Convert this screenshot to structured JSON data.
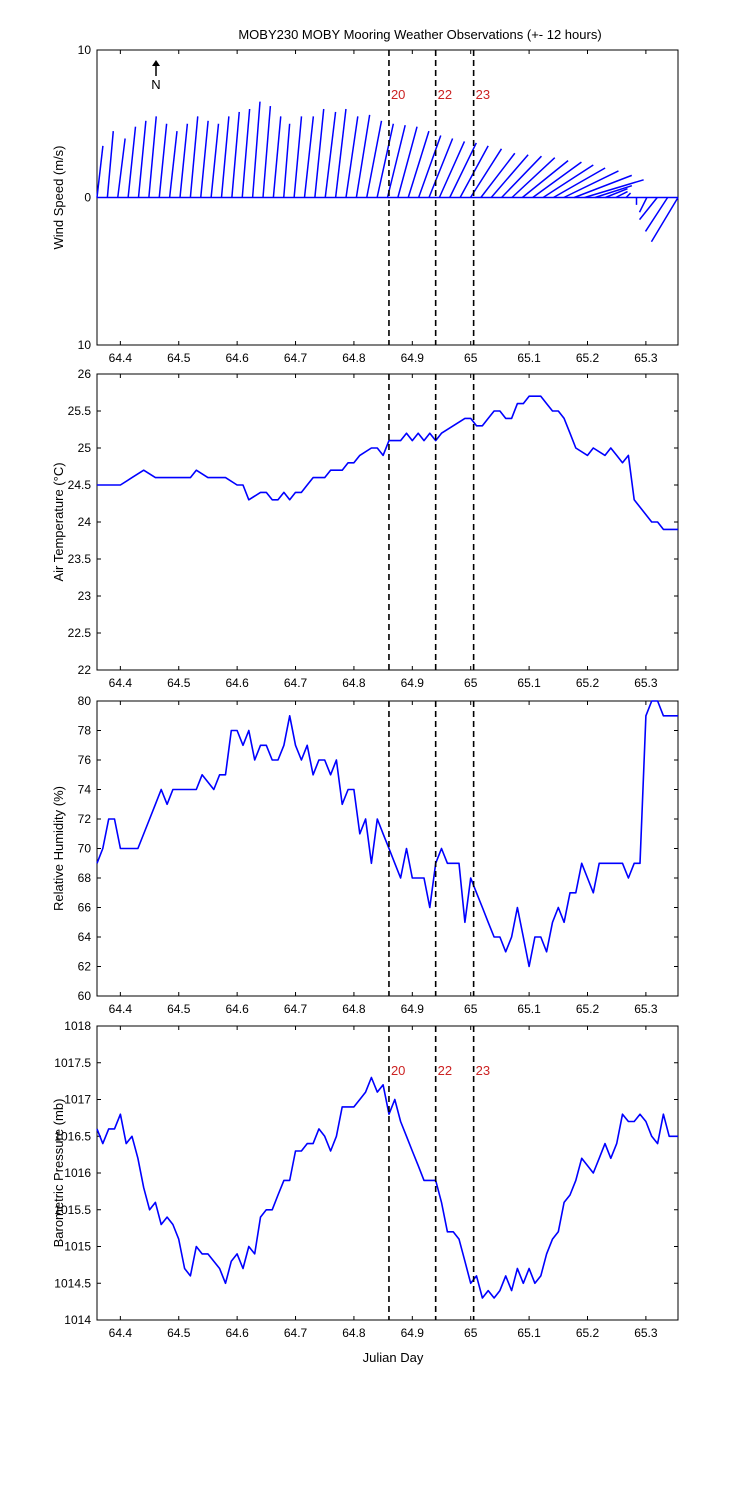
{
  "figure_title": "MOBY230 MOBY Mooring Weather Observations (+- 12 hours)",
  "colors": {
    "series": "#0000ff",
    "event_label": "#cc2222",
    "axis": "#000000"
  },
  "north_label": "N",
  "xlabel": "Julian Day",
  "x_ticks": [
    64.4,
    64.5,
    64.6,
    64.7,
    64.8,
    64.9,
    65,
    65.1,
    65.2,
    65.3
  ],
  "x_tick_labels": [
    "64.4",
    "64.5",
    "64.6",
    "64.7",
    "64.8",
    "64.9",
    "65",
    "65.1",
    "65.2",
    "65.3"
  ],
  "events": [
    {
      "x": 64.86,
      "label": "20"
    },
    {
      "x": 64.94,
      "label": "22"
    },
    {
      "x": 65.005,
      "label": "23"
    }
  ],
  "chart_data": [
    {
      "type": "line",
      "subtype": "wind-stick",
      "ylabel": "Wind Speed (m/s)",
      "xlim": [
        64.36,
        65.355
      ],
      "ylim": [
        -10,
        10
      ],
      "y_tick_labels": [
        "10",
        "0",
        "10"
      ],
      "show_events": true,
      "event_labels_shown": true,
      "series": [
        {
          "u": [
            0.4,
            0.4,
            0.5,
            0.5,
            0.5,
            0.5,
            0.5,
            0.5,
            0.5,
            0.5,
            0.5,
            0.5,
            0.5,
            0.5,
            0.5,
            0.5,
            0.5,
            0.5,
            0.4,
            0.5,
            0.6,
            0.6,
            0.7,
            0.7,
            0.8,
            0.9,
            1.0,
            1.1,
            1.2,
            1.3,
            1.4,
            1.5,
            1.6,
            1.7,
            1.8,
            1.9,
            2.1,
            2.3,
            2.5,
            2.7,
            2.9,
            3.1,
            3.3,
            3.4,
            3.5,
            3.7,
            3.9,
            4.0,
            2.5,
            1.5,
            0.8,
            0.3,
            0.0,
            -0.5,
            -1.2,
            -1.5,
            -1.8
          ],
          "v": [
            3.5,
            4.5,
            4.0,
            4.8,
            5.2,
            5.5,
            5.0,
            4.5,
            5.0,
            5.5,
            5.2,
            5.0,
            5.5,
            5.8,
            6.0,
            6.5,
            6.2,
            5.5,
            5.0,
            5.5,
            5.5,
            6.0,
            5.8,
            6.0,
            5.5,
            5.6,
            5.2,
            5.0,
            4.9,
            4.8,
            4.5,
            4.2,
            4.0,
            3.8,
            3.7,
            3.5,
            3.3,
            3.0,
            2.9,
            2.8,
            2.7,
            2.5,
            2.4,
            2.2,
            2.0,
            1.8,
            1.5,
            1.2,
            0.8,
            0.6,
            0.4,
            0.3,
            -0.5,
            -1.0,
            -1.5,
            -2.3,
            -3.0
          ]
        }
      ]
    },
    {
      "type": "line",
      "ylabel": "Air Temperature (°C)",
      "xlim": [
        64.36,
        65.355
      ],
      "ylim": [
        22,
        26
      ],
      "y_ticks": [
        22,
        22.5,
        23,
        23.5,
        24,
        24.5,
        25,
        25.5,
        26
      ],
      "y_tick_labels": [
        "22",
        "22.5",
        "23",
        "23.5",
        "24",
        "24.5",
        "25",
        "25.5",
        "26"
      ],
      "show_events": true,
      "event_labels_shown": false,
      "series": [
        {
          "x": [
            64.36,
            64.4,
            64.42,
            64.44,
            64.46,
            64.48,
            64.5,
            64.51,
            64.52,
            64.53,
            64.55,
            64.57,
            64.58,
            64.6,
            64.61,
            64.62,
            64.64,
            64.65,
            64.66,
            64.67,
            64.68,
            64.69,
            64.7,
            64.71,
            64.72,
            64.73,
            64.74,
            64.75,
            64.76,
            64.78,
            64.79,
            64.8,
            64.81,
            64.83,
            64.84,
            64.85,
            64.86,
            64.88,
            64.89,
            64.9,
            64.91,
            64.92,
            64.93,
            64.94,
            64.95,
            64.97,
            64.99,
            65.0,
            65.01,
            65.02,
            65.03,
            65.04,
            65.05,
            65.06,
            65.07,
            65.08,
            65.09,
            65.1,
            65.12,
            65.13,
            65.14,
            65.15,
            65.16,
            65.17,
            65.18,
            65.2,
            65.21,
            65.23,
            65.24,
            65.25,
            65.26,
            65.27,
            65.28,
            65.3,
            65.31,
            65.32,
            65.33,
            65.34,
            65.355
          ],
          "y": [
            24.5,
            24.5,
            24.6,
            24.7,
            24.6,
            24.6,
            24.6,
            24.6,
            24.6,
            24.7,
            24.6,
            24.6,
            24.6,
            24.5,
            24.5,
            24.3,
            24.4,
            24.4,
            24.3,
            24.3,
            24.4,
            24.3,
            24.4,
            24.4,
            24.5,
            24.6,
            24.6,
            24.6,
            24.7,
            24.7,
            24.8,
            24.8,
            24.9,
            25.0,
            25.0,
            24.9,
            25.1,
            25.1,
            25.2,
            25.1,
            25.2,
            25.1,
            25.2,
            25.1,
            25.2,
            25.3,
            25.4,
            25.4,
            25.3,
            25.3,
            25.4,
            25.5,
            25.5,
            25.4,
            25.4,
            25.6,
            25.6,
            25.7,
            25.7,
            25.6,
            25.5,
            25.5,
            25.4,
            25.2,
            25.0,
            24.9,
            25.0,
            24.9,
            25.0,
            24.9,
            24.8,
            24.9,
            24.3,
            24.1,
            24.0,
            24.0,
            23.9,
            23.9,
            23.9
          ]
        }
      ]
    },
    {
      "type": "line",
      "ylabel": "Relative Humidity (%)",
      "xlim": [
        64.36,
        65.355
      ],
      "ylim": [
        60,
        80
      ],
      "y_ticks": [
        60,
        62,
        64,
        66,
        68,
        70,
        72,
        74,
        76,
        78,
        80
      ],
      "y_tick_labels": [
        "60",
        "62",
        "64",
        "66",
        "68",
        "70",
        "72",
        "74",
        "76",
        "78",
        "80"
      ],
      "show_events": true,
      "event_labels_shown": false,
      "series": [
        {
          "x": [
            64.36,
            64.37,
            64.38,
            64.39,
            64.4,
            64.41,
            64.43,
            64.45,
            64.46,
            64.47,
            64.48,
            64.49,
            64.5,
            64.51,
            64.52,
            64.53,
            64.54,
            64.56,
            64.57,
            64.58,
            64.59,
            64.6,
            64.61,
            64.62,
            64.63,
            64.64,
            64.65,
            64.66,
            64.67,
            64.68,
            64.69,
            64.7,
            64.71,
            64.72,
            64.73,
            64.74,
            64.75,
            64.76,
            64.77,
            64.78,
            64.79,
            64.8,
            64.81,
            64.82,
            64.83,
            64.84,
            64.85,
            64.86,
            64.87,
            64.88,
            64.89,
            64.9,
            64.91,
            64.92,
            64.93,
            64.94,
            64.95,
            64.96,
            64.97,
            64.98,
            64.99,
            65.0,
            65.01,
            65.02,
            65.03,
            65.04,
            65.05,
            65.06,
            65.07,
            65.08,
            65.09,
            65.1,
            65.11,
            65.12,
            65.13,
            65.14,
            65.15,
            65.16,
            65.17,
            65.18,
            65.19,
            65.2,
            65.21,
            65.22,
            65.23,
            65.24,
            65.25,
            65.26,
            65.27,
            65.28,
            65.29,
            65.3,
            65.31,
            65.32,
            65.33,
            65.34,
            65.355
          ],
          "y": [
            69,
            70,
            72,
            72,
            70,
            70,
            70,
            72,
            73,
            74,
            73,
            74,
            74,
            74,
            74,
            74,
            75,
            74,
            75,
            75,
            78,
            78,
            77,
            78,
            76,
            77,
            77,
            76,
            76,
            77,
            79,
            77,
            76,
            77,
            75,
            76,
            76,
            75,
            76,
            73,
            74,
            74,
            71,
            72,
            69,
            72,
            71,
            70,
            69,
            68,
            70,
            68,
            68,
            68,
            66,
            69,
            70,
            69,
            69,
            69,
            65,
            68,
            67,
            66,
            65,
            64,
            64,
            63,
            64,
            66,
            64,
            62,
            64,
            64,
            63,
            65,
            66,
            65,
            67,
            67,
            69,
            68,
            67,
            69,
            69,
            69,
            69,
            69,
            68,
            69,
            69,
            79,
            80,
            80,
            79,
            79,
            79
          ]
        }
      ]
    },
    {
      "type": "line",
      "ylabel": "Barometric Pressure (mb)",
      "xlabel": "Julian Day",
      "xlim": [
        64.36,
        65.355
      ],
      "ylim": [
        1014,
        1018
      ],
      "y_ticks": [
        1014,
        1014.5,
        1015,
        1015.5,
        1016,
        1016.5,
        1017,
        1017.5,
        1018
      ],
      "y_tick_labels": [
        "1014",
        "1014.5",
        "1015",
        "1015.5",
        "1016",
        "1016.5",
        "1017",
        "1017.5",
        "1018"
      ],
      "show_events": true,
      "event_labels_shown": true,
      "series": [
        {
          "x": [
            64.36,
            64.37,
            64.38,
            64.39,
            64.4,
            64.41,
            64.42,
            64.43,
            64.44,
            64.45,
            64.46,
            64.47,
            64.48,
            64.49,
            64.5,
            64.51,
            64.52,
            64.53,
            64.54,
            64.55,
            64.56,
            64.57,
            64.58,
            64.59,
            64.6,
            64.61,
            64.62,
            64.63,
            64.64,
            64.65,
            64.66,
            64.67,
            64.68,
            64.69,
            64.7,
            64.71,
            64.72,
            64.73,
            64.74,
            64.75,
            64.76,
            64.77,
            64.78,
            64.79,
            64.8,
            64.81,
            64.82,
            64.83,
            64.84,
            64.85,
            64.86,
            64.87,
            64.88,
            64.89,
            64.9,
            64.91,
            64.92,
            64.93,
            64.94,
            64.95,
            64.96,
            64.97,
            64.98,
            64.99,
            65.0,
            65.01,
            65.02,
            65.03,
            65.04,
            65.05,
            65.06,
            65.07,
            65.08,
            65.09,
            65.1,
            65.11,
            65.12,
            65.13,
            65.14,
            65.15,
            65.16,
            65.17,
            65.18,
            65.19,
            65.2,
            65.21,
            65.22,
            65.23,
            65.24,
            65.25,
            65.26,
            65.27,
            65.28,
            65.29,
            65.3,
            65.31,
            65.32,
            65.33,
            65.34,
            65.355
          ],
          "y": [
            1016.6,
            1016.4,
            1016.6,
            1016.6,
            1016.8,
            1016.4,
            1016.5,
            1016.2,
            1015.8,
            1015.5,
            1015.6,
            1015.3,
            1015.4,
            1015.3,
            1015.1,
            1014.7,
            1014.6,
            1015.0,
            1014.9,
            1014.9,
            1014.8,
            1014.7,
            1014.5,
            1014.8,
            1014.9,
            1014.7,
            1015.0,
            1014.9,
            1015.4,
            1015.5,
            1015.5,
            1015.7,
            1015.9,
            1015.9,
            1016.3,
            1016.3,
            1016.4,
            1016.4,
            1016.6,
            1016.5,
            1016.3,
            1016.5,
            1016.9,
            1016.9,
            1016.9,
            1017.0,
            1017.1,
            1017.3,
            1017.1,
            1017.2,
            1016.8,
            1017.0,
            1016.7,
            1016.5,
            1016.3,
            1016.1,
            1015.9,
            1015.9,
            1015.9,
            1015.6,
            1015.2,
            1015.2,
            1015.1,
            1014.8,
            1014.5,
            1014.6,
            1014.3,
            1014.4,
            1014.3,
            1014.4,
            1014.6,
            1014.4,
            1014.7,
            1014.5,
            1014.7,
            1014.5,
            1014.6,
            1014.9,
            1015.1,
            1015.2,
            1015.6,
            1015.7,
            1015.9,
            1016.2,
            1016.1,
            1016.0,
            1016.2,
            1016.4,
            1016.2,
            1016.4,
            1016.8,
            1016.7,
            1016.7,
            1016.8,
            1016.7,
            1016.5,
            1016.4,
            1016.8,
            1016.5,
            1016.5
          ]
        }
      ]
    }
  ]
}
